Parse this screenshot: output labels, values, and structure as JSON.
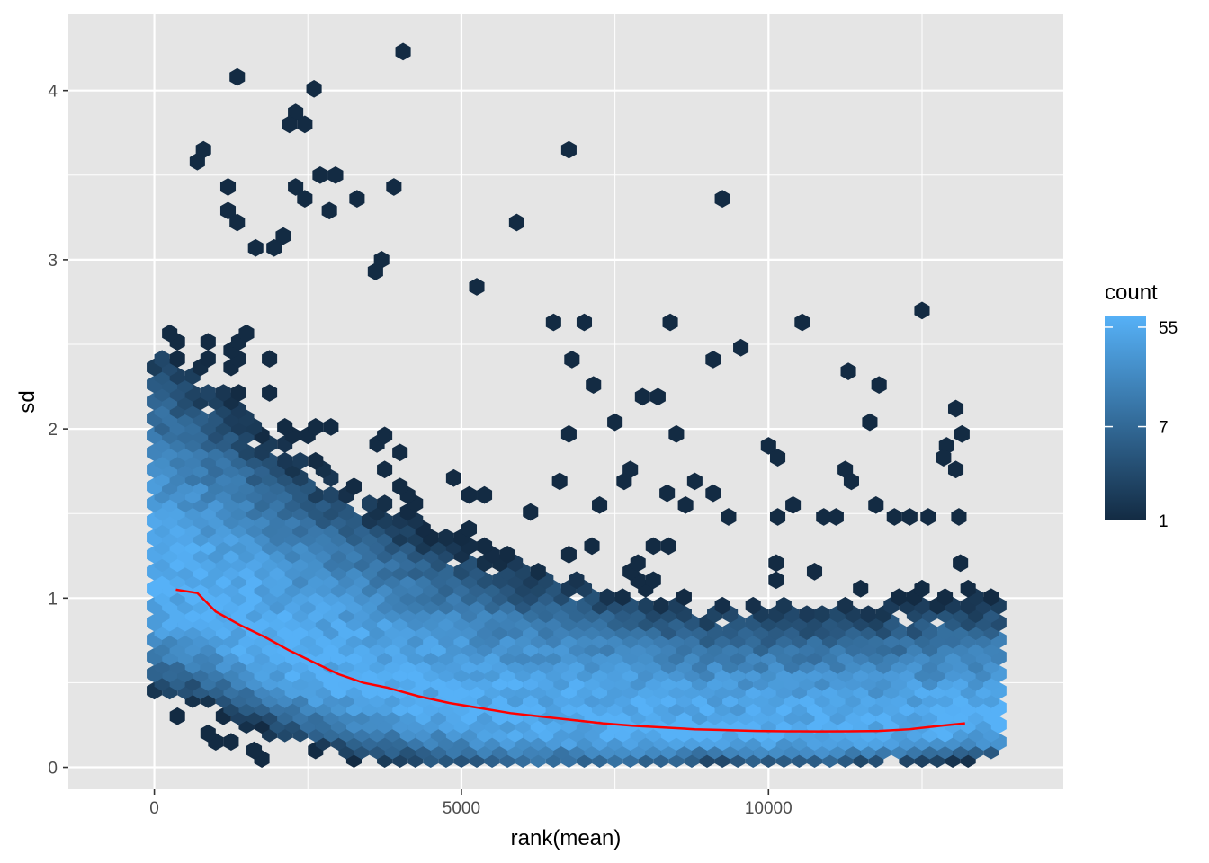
{
  "chart_data": {
    "type": "hexbin",
    "x_label": "rank(mean)",
    "y_label": "sd",
    "xlim": [
      -1400,
      14800
    ],
    "ylim": [
      -0.13,
      4.45
    ],
    "x_ticks": [
      0,
      5000,
      10000
    ],
    "y_ticks": [
      0,
      1,
      2,
      3,
      4
    ],
    "x_tick_labels": [
      "0",
      "5000",
      "10000"
    ],
    "y_tick_labels": [
      "0",
      "1",
      "2",
      "3",
      "4"
    ],
    "grid": true,
    "panel_background": "#e5e5e5",
    "grid_color": "#ffffff",
    "legend": {
      "title": "count",
      "position": "right",
      "labels": [
        "55",
        "7",
        "1"
      ],
      "values": [
        55,
        7,
        1
      ],
      "scale": "log",
      "range": [
        1,
        70
      ],
      "color_low": "#132b43",
      "color_high": "#56b1f7"
    },
    "trend_line": {
      "color": "#ff0000",
      "x": [
        350,
        700,
        1000,
        1400,
        1800,
        2200,
        2600,
        3000,
        3400,
        3800,
        4300,
        4800,
        5300,
        5800,
        6300,
        6800,
        7300,
        7800,
        8300,
        8800,
        9300,
        9800,
        10300,
        10800,
        11300,
        11800,
        12300,
        12800,
        13200
      ],
      "y": [
        1.05,
        1.03,
        0.92,
        0.84,
        0.77,
        0.69,
        0.62,
        0.55,
        0.5,
        0.47,
        0.42,
        0.38,
        0.35,
        0.32,
        0.3,
        0.28,
        0.26,
        0.245,
        0.235,
        0.225,
        0.22,
        0.215,
        0.213,
        0.212,
        0.213,
        0.215,
        0.225,
        0.245,
        0.26
      ]
    },
    "hexbin": {
      "x_range": [
        0,
        13800
      ],
      "hex_width": 250,
      "hex_row_step": 0.0503,
      "density_trend": {
        "x": [
          0,
          1000,
          2000,
          3000,
          4000,
          5000,
          6000,
          7000,
          8000,
          9000,
          10000,
          11000,
          12000,
          13000,
          13800
        ],
        "sd": [
          1.05,
          0.9,
          0.7,
          0.55,
          0.45,
          0.37,
          0.3,
          0.27,
          0.24,
          0.22,
          0.21,
          0.21,
          0.22,
          0.25,
          0.26
        ]
      },
      "density_spread": {
        "x": [
          0,
          2000,
          5000,
          9000,
          13800
        ],
        "above": [
          1.1,
          0.9,
          0.7,
          0.55,
          0.55
        ],
        "below": [
          0.45,
          0.38,
          0.3,
          0.15,
          0.15
        ]
      },
      "peak_count": 62,
      "outliers": [
        [
          4050,
          4.23
        ],
        [
          1350,
          4.08
        ],
        [
          2600,
          4.01
        ],
        [
          2300,
          3.87
        ],
        [
          2200,
          3.8
        ],
        [
          2450,
          3.8
        ],
        [
          700,
          3.58
        ],
        [
          800,
          3.65
        ],
        [
          6750,
          3.65
        ],
        [
          2700,
          3.5
        ],
        [
          2950,
          3.5
        ],
        [
          3900,
          3.43
        ],
        [
          1200,
          3.43
        ],
        [
          2300,
          3.43
        ],
        [
          2450,
          3.36
        ],
        [
          3300,
          3.36
        ],
        [
          9250,
          3.36
        ],
        [
          1200,
          3.29
        ],
        [
          2850,
          3.29
        ],
        [
          1350,
          3.22
        ],
        [
          5900,
          3.22
        ],
        [
          1650,
          3.07
        ],
        [
          1950,
          3.07
        ],
        [
          2100,
          3.14
        ],
        [
          3700,
          3.0
        ],
        [
          3600,
          2.93
        ],
        [
          5250,
          2.84
        ],
        [
          6500,
          2.63
        ],
        [
          7000,
          2.63
        ],
        [
          8400,
          2.63
        ],
        [
          10550,
          2.63
        ],
        [
          12500,
          2.7
        ],
        [
          9550,
          2.48
        ],
        [
          9100,
          2.41
        ],
        [
          6800,
          2.41
        ],
        [
          11300,
          2.34
        ],
        [
          11800,
          2.26
        ],
        [
          7150,
          2.26
        ],
        [
          8200,
          2.19
        ],
        [
          7950,
          2.19
        ],
        [
          13050,
          2.12
        ],
        [
          11650,
          2.04
        ],
        [
          7500,
          2.04
        ],
        [
          8500,
          1.97
        ],
        [
          6750,
          1.97
        ],
        [
          10000,
          1.9
        ],
        [
          10150,
          1.83
        ],
        [
          12900,
          1.9
        ],
        [
          13150,
          1.97
        ],
        [
          12850,
          1.83
        ],
        [
          11250,
          1.76
        ],
        [
          7750,
          1.76
        ],
        [
          7650,
          1.69
        ],
        [
          6600,
          1.69
        ],
        [
          11350,
          1.69
        ],
        [
          13050,
          1.76
        ],
        [
          8350,
          1.62
        ],
        [
          8800,
          1.69
        ],
        [
          9100,
          1.62
        ],
        [
          10400,
          1.55
        ],
        [
          11750,
          1.55
        ],
        [
          12050,
          1.48
        ],
        [
          10150,
          1.48
        ],
        [
          10900,
          1.48
        ],
        [
          11100,
          1.48
        ],
        [
          12300,
          1.48
        ],
        [
          12600,
          1.48
        ],
        [
          13100,
          1.48
        ],
        [
          7250,
          1.55
        ],
        [
          8650,
          1.55
        ],
        [
          9350,
          1.48
        ]
      ]
    }
  }
}
